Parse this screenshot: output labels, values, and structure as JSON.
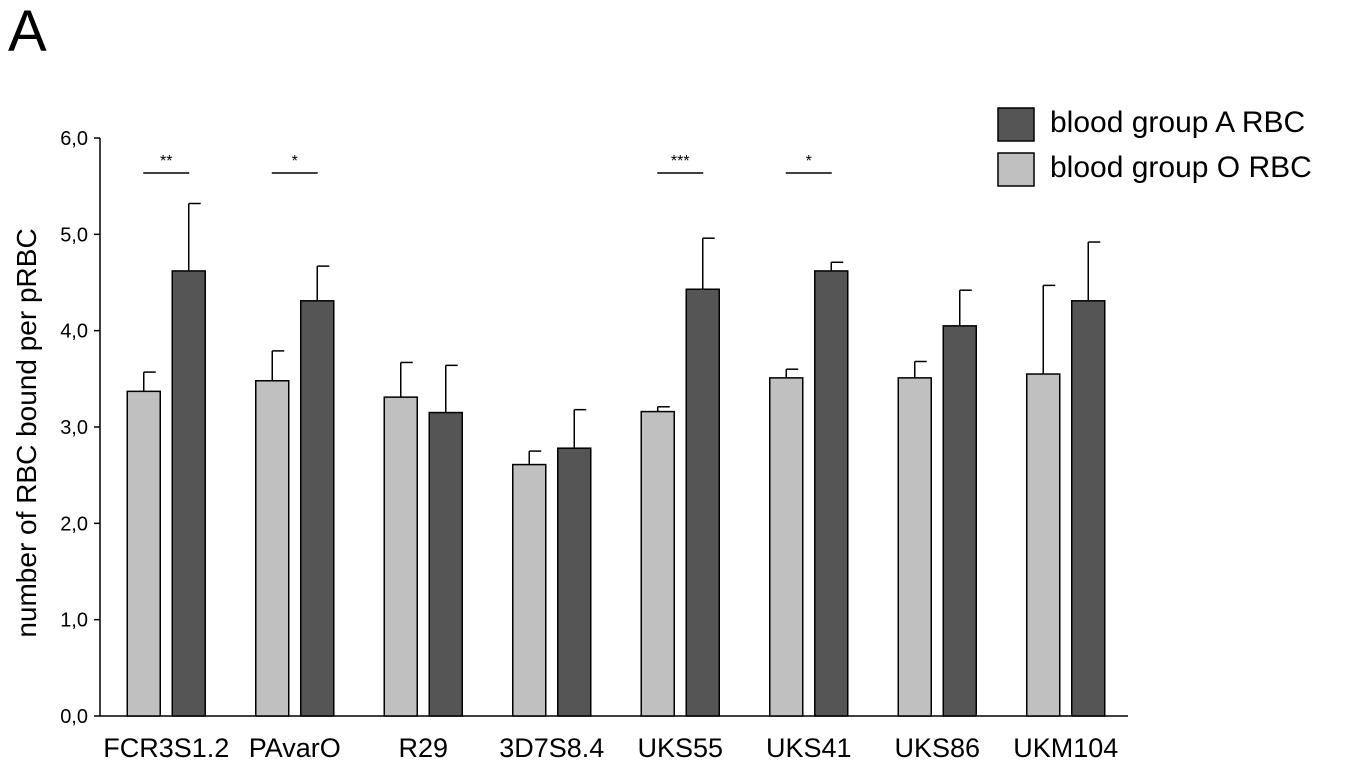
{
  "panel_label": "A",
  "chart_data": {
    "type": "bar",
    "title": "",
    "xlabel": "",
    "ylabel": "number of RBC bound per pRBC",
    "ylim": [
      0,
      6
    ],
    "yticks": [
      "0,0",
      "1,0",
      "2,0",
      "3,0",
      "4,0",
      "5,0",
      "6,0"
    ],
    "ytick_values": [
      0,
      1,
      2,
      3,
      4,
      5,
      6
    ],
    "grid": false,
    "legend_position": "top-right",
    "categories": [
      "FCR3S1.2",
      "PAvarO",
      "R29",
      "3D7S8.4",
      "UKS55",
      "UKS41",
      "UKS86",
      "UKM104"
    ],
    "series": [
      {
        "name": "blood group O RBC",
        "color": "#c0c0c0",
        "values": [
          3.37,
          3.48,
          3.31,
          2.61,
          3.16,
          3.51,
          3.51,
          3.55
        ],
        "errors": [
          0.2,
          0.31,
          0.36,
          0.14,
          0.05,
          0.09,
          0.17,
          0.92
        ]
      },
      {
        "name": "blood group A RBC",
        "color": "#555555",
        "values": [
          4.62,
          4.31,
          3.15,
          2.78,
          4.43,
          4.62,
          4.05,
          4.31
        ],
        "errors": [
          0.7,
          0.36,
          0.49,
          0.4,
          0.53,
          0.09,
          0.37,
          0.61
        ]
      }
    ],
    "legend_order": [
      "blood group A RBC",
      "blood group O RBC"
    ],
    "significance": [
      {
        "category_index": 0,
        "label": "**"
      },
      {
        "category_index": 1,
        "label": "*"
      },
      {
        "category_index": 4,
        "label": "***"
      },
      {
        "category_index": 5,
        "label": "*"
      }
    ]
  }
}
